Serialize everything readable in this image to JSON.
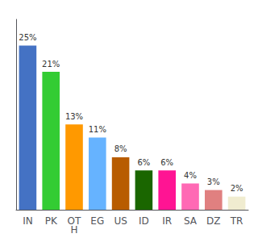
{
  "chart_data": {
    "type": "bar",
    "categories": [
      "IN",
      "PK",
      "OT\nH",
      "EG",
      "US",
      "ID",
      "IR",
      "SA",
      "DZ",
      "TR"
    ],
    "values": [
      25,
      21,
      13,
      11,
      8,
      6,
      6,
      4,
      3,
      2
    ],
    "value_labels": [
      "25%",
      "21%",
      "13%",
      "11%",
      "8%",
      "6%",
      "6%",
      "4%",
      "3%",
      "2%"
    ],
    "colors": [
      "#4472c4",
      "#33cc33",
      "#ff9900",
      "#66b3ff",
      "#b85c00",
      "#1a6600",
      "#ff1493",
      "#ff69b4",
      "#e08080",
      "#f0ecd0"
    ],
    "ylim": [
      0,
      29
    ],
    "data_labels": true,
    "tick_labels": "x",
    "grid": false
  }
}
